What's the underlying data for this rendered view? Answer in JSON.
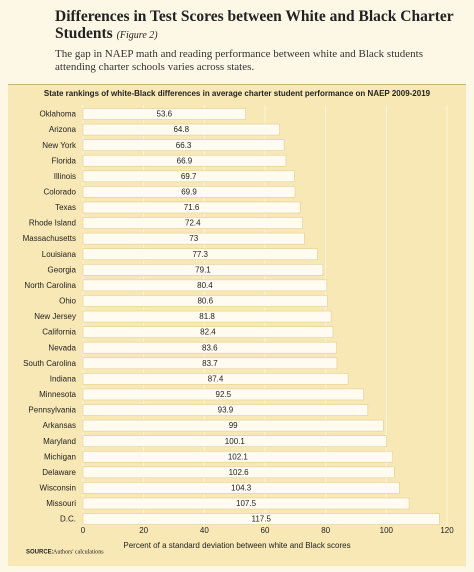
{
  "chart_data": {
    "type": "bar",
    "orientation": "horizontal",
    "title": "Differences in Test Scores between White and Black Charter Students",
    "title_note": "(Figure 2)",
    "subtitle": "The gap in NAEP math and reading performance between white and Black students attending charter schools varies across states.",
    "chart_title": "State rankings of white-Black differences in average charter student performance on NAEP 2009-2019",
    "x_label": "Percent of a standard deviation between white and Black scores",
    "source_label": "SOURCE:",
    "source": "Authors' calculations",
    "categories": [
      "Oklahoma",
      "Arizona",
      "New York",
      "Florida",
      "Illinois",
      "Colorado",
      "Texas",
      "Rhode Island",
      "Massachusetts",
      "Louisiana",
      "Georgia",
      "North Carolina",
      "Ohio",
      "New Jersey",
      "California",
      "Nevada",
      "South Carolina",
      "Indiana",
      "Minnesota",
      "Pennsylvania",
      "Arkansas",
      "Maryland",
      "Michigan",
      "Delaware",
      "Wisconsin",
      "Missouri",
      "D.C."
    ],
    "values": [
      53.6,
      64.8,
      66.3,
      66.9,
      69.7,
      69.9,
      71.6,
      72.4,
      73,
      77.3,
      79.1,
      80.4,
      80.6,
      81.8,
      82.4,
      83.6,
      83.7,
      87.4,
      92.5,
      93.9,
      99,
      100.1,
      102.1,
      102.6,
      104.3,
      107.5,
      117.5
    ],
    "color": "#fffbf0",
    "xlim": [
      0,
      120
    ],
    "xticks": [
      0,
      20,
      40,
      60,
      80,
      100,
      120
    ],
    "grid": true
  }
}
